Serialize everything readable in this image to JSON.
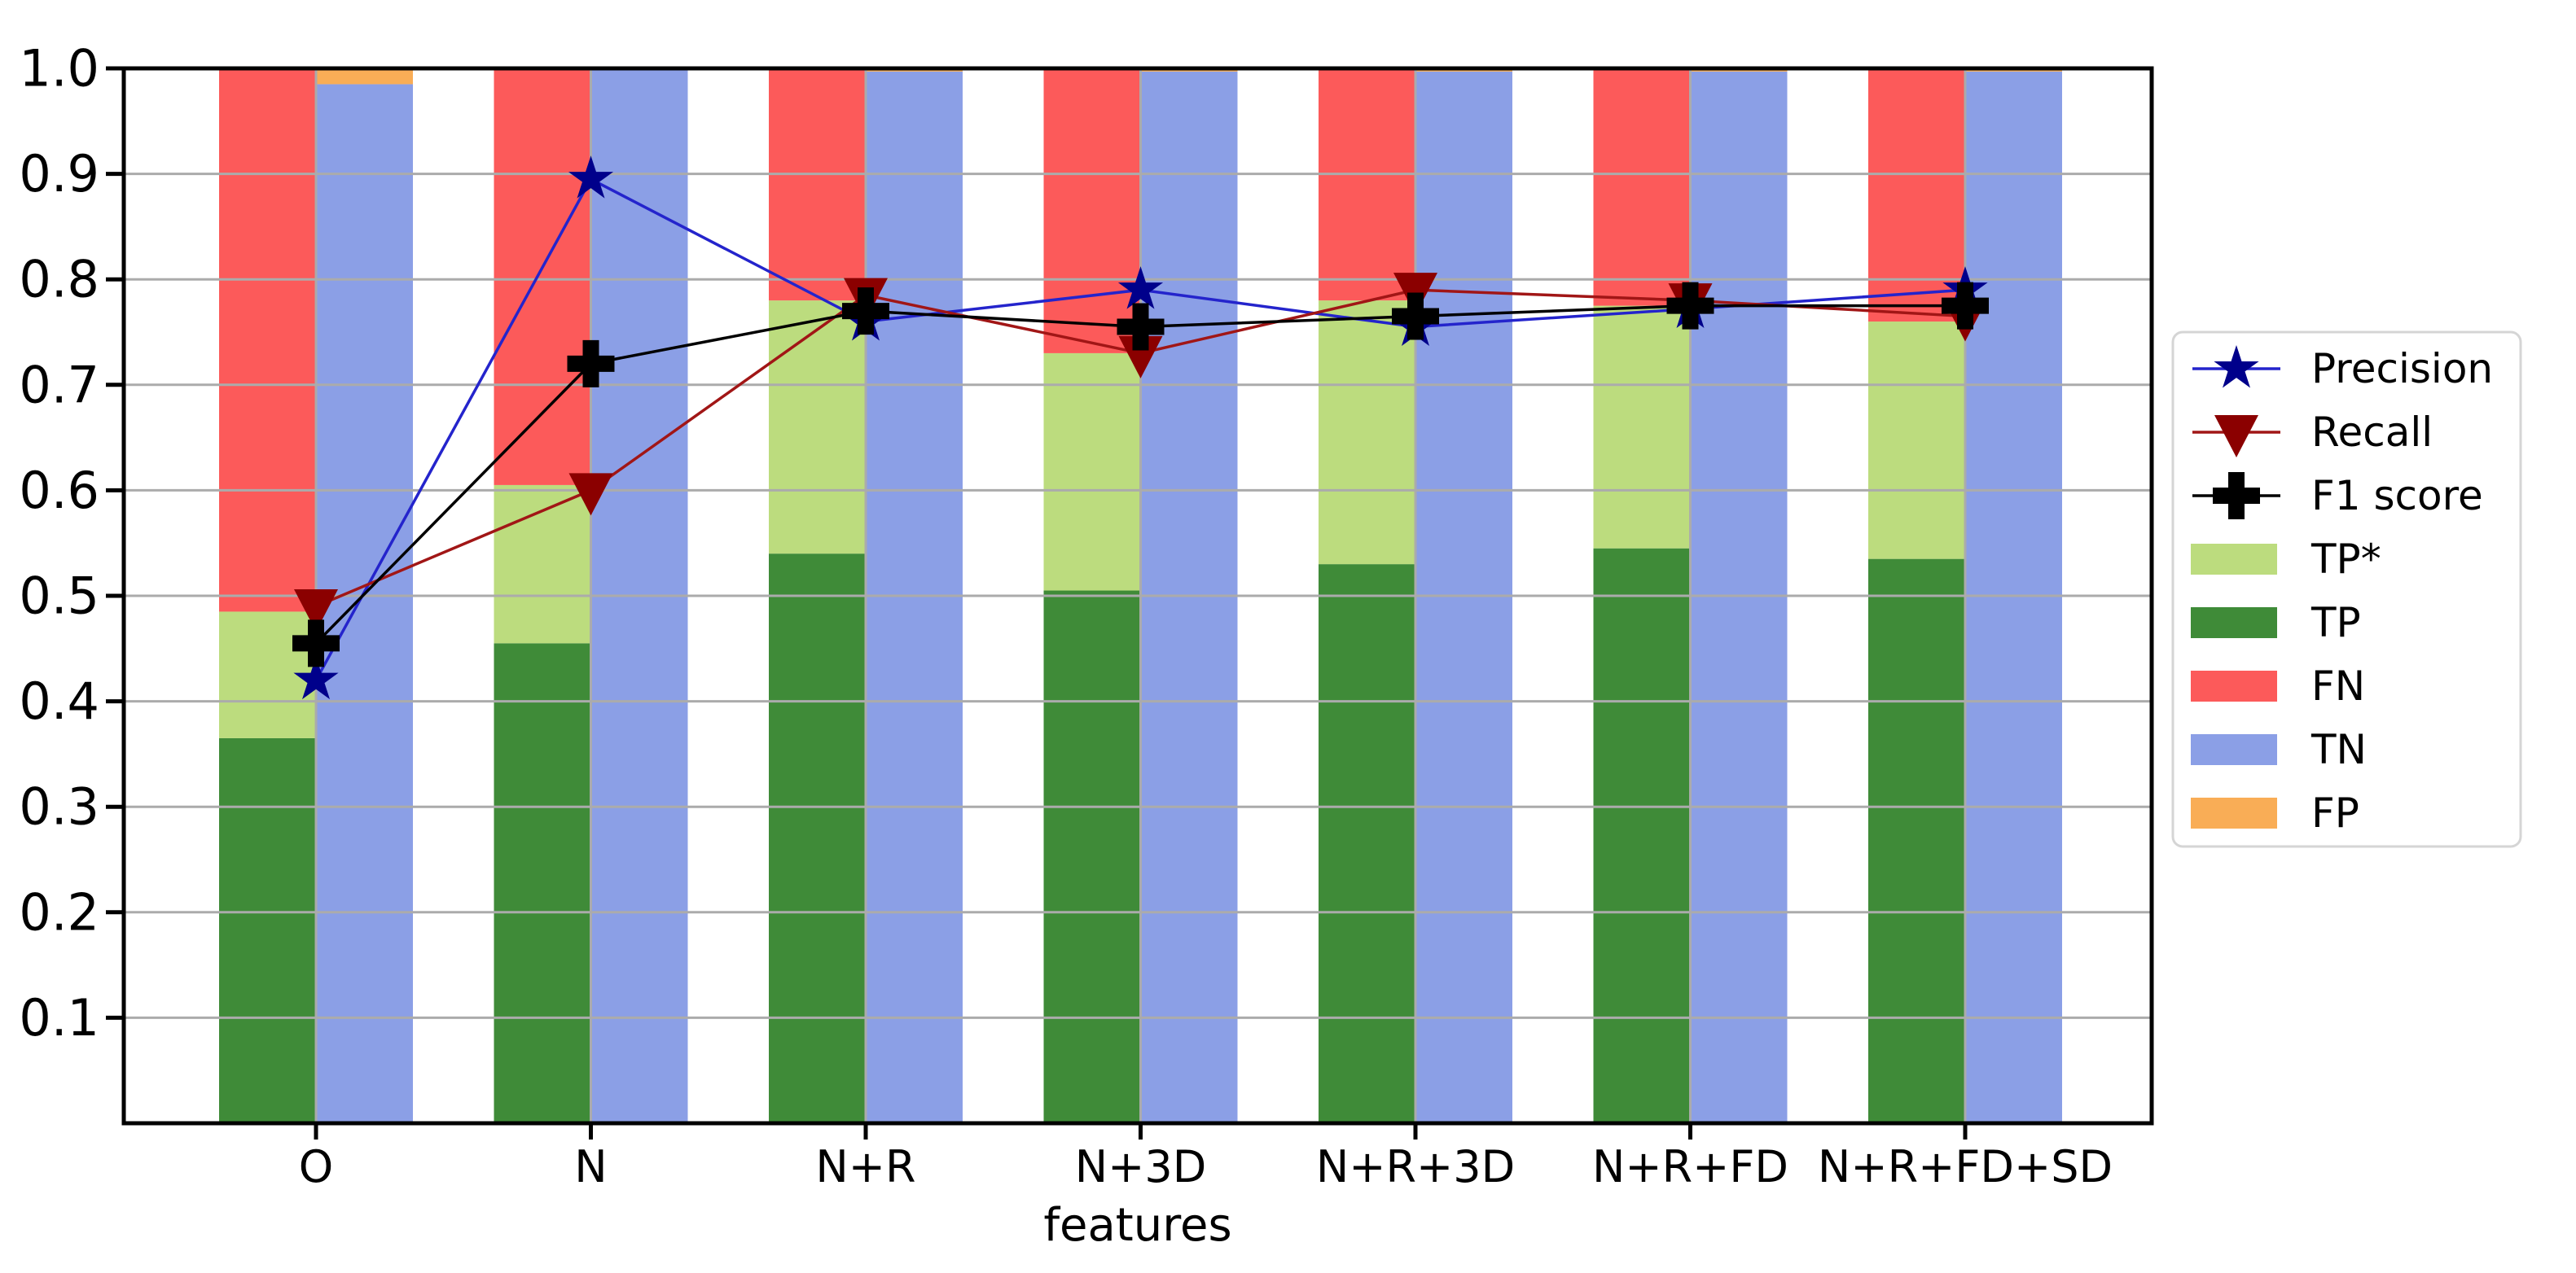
{
  "chart_data": {
    "type": "bar+line",
    "title": "",
    "xlabel": "features",
    "ylabel": "",
    "categories": [
      "O",
      "N",
      "N+R",
      "N+3D",
      "N+R+3D",
      "N+R+FD",
      "N+R+FD+SD"
    ],
    "ylim": [
      0.0,
      1.0
    ],
    "ytick_labels": [
      "0.1",
      "0.2",
      "0.3",
      "0.4",
      "0.5",
      "0.6",
      "0.7",
      "0.8",
      "0.9",
      "1.0"
    ],
    "grid": "horizontal gridlines at each 0.1, vertical seam at each category tick",
    "grid_color": "#ababab",
    "spine_color": "#000000",
    "legend_position": "right, outside axes",
    "bars": {
      "left_stack": [
        {
          "label": "TP",
          "color": "#3f8b38",
          "tops": [
            0.365,
            0.455,
            0.54,
            0.505,
            0.53,
            0.545,
            0.535
          ]
        },
        {
          "label": "TP*",
          "color": "#bcdc7e",
          "tops": [
            0.485,
            0.605,
            0.78,
            0.73,
            0.78,
            0.775,
            0.76
          ]
        },
        {
          "label": "FN",
          "color": "#fc5a5a",
          "tops": [
            1.0,
            1.0,
            1.0,
            1.0,
            1.0,
            1.0,
            1.0
          ]
        }
      ],
      "right_stack": [
        {
          "label": "TN",
          "color": "#8b9fe6",
          "tops": [
            0.985,
            1.0,
            0.997,
            0.997,
            0.997,
            0.997,
            0.997
          ]
        },
        {
          "label": "FP",
          "color": "#f9ad56",
          "tops": [
            1.0,
            1.0,
            1.0,
            1.0,
            1.0,
            1.0,
            1.0
          ]
        }
      ]
    },
    "lines": [
      {
        "label": "Precision",
        "marker": "star",
        "marker_color": "#00008b",
        "line_color": "#2424cc",
        "values": [
          0.42,
          0.895,
          0.76,
          0.79,
          0.755,
          0.772,
          0.79
        ]
      },
      {
        "label": "Recall",
        "marker": "triangle-down",
        "marker_color": "#8b0000",
        "line_color": "#a11616",
        "values": [
          0.49,
          0.6,
          0.785,
          0.73,
          0.79,
          0.78,
          0.765
        ]
      },
      {
        "label": "F1 score",
        "marker": "plus",
        "marker_color": "#000000",
        "line_color": "#000000",
        "values": [
          0.455,
          0.72,
          0.77,
          0.755,
          0.765,
          0.775,
          0.775
        ]
      }
    ],
    "legend": {
      "entries": [
        "Precision",
        "Recall",
        "F1 score",
        "TP*",
        "TP",
        "FN",
        "TN",
        "FP"
      ]
    }
  }
}
